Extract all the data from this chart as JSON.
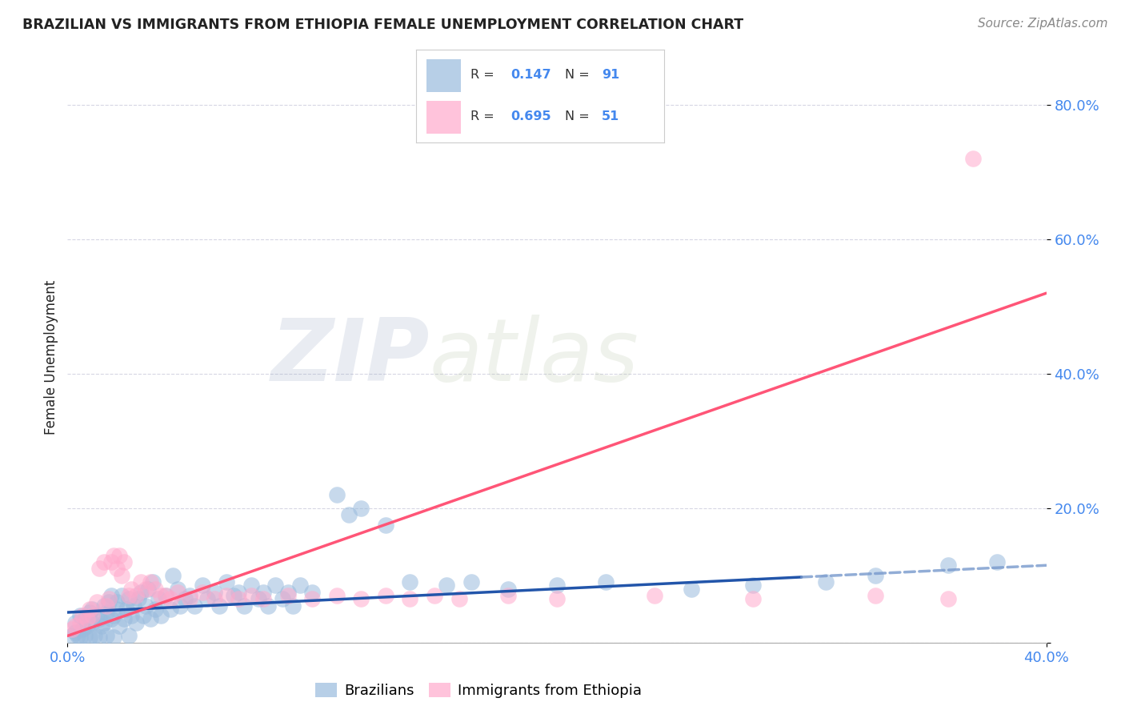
{
  "title": "BRAZILIAN VS IMMIGRANTS FROM ETHIOPIA FEMALE UNEMPLOYMENT CORRELATION CHART",
  "source": "Source: ZipAtlas.com",
  "ylabel": "Female Unemployment",
  "xlim": [
    0.0,
    0.4
  ],
  "ylim": [
    0.0,
    0.85
  ],
  "ytick_vals": [
    0.0,
    0.2,
    0.4,
    0.6,
    0.8
  ],
  "ytick_labels": [
    "",
    "20.0%",
    "40.0%",
    "60.0%",
    "80.0%"
  ],
  "xtick_vals": [
    0.0,
    0.4
  ],
  "xtick_labels": [
    "0.0%",
    "40.0%"
  ],
  "watermark_zip": "ZIP",
  "watermark_atlas": "atlas",
  "legend_r1": "R = ",
  "legend_v1": "0.147",
  "legend_n1": "N = ",
  "legend_nv1": "91",
  "legend_r2": "R = ",
  "legend_v2": "0.695",
  "legend_n2": "N = ",
  "legend_nv2": "51",
  "blue_color": "#99BBDD",
  "pink_color": "#FFAACC",
  "blue_line_color": "#2255AA",
  "pink_line_color": "#FF5577",
  "blue_line_dashed_color": "#7799CC",
  "axis_tick_color": "#4488EE",
  "text_color": "#222222",
  "source_color": "#888888",
  "background_color": "#FFFFFF",
  "grid_color": "#CCCCDD",
  "blue_scatter_x": [
    0.003,
    0.005,
    0.006,
    0.007,
    0.008,
    0.009,
    0.01,
    0.01,
    0.012,
    0.013,
    0.014,
    0.015,
    0.015,
    0.016,
    0.017,
    0.018,
    0.018,
    0.019,
    0.02,
    0.02,
    0.021,
    0.022,
    0.023,
    0.024,
    0.025,
    0.026,
    0.027,
    0.028,
    0.029,
    0.03,
    0.031,
    0.032,
    0.033,
    0.034,
    0.035,
    0.036,
    0.037,
    0.038,
    0.04,
    0.042,
    0.043,
    0.045,
    0.046,
    0.048,
    0.05,
    0.052,
    0.055,
    0.057,
    0.06,
    0.062,
    0.065,
    0.068,
    0.07,
    0.072,
    0.075,
    0.078,
    0.08,
    0.082,
    0.085,
    0.088,
    0.09,
    0.092,
    0.095,
    0.1,
    0.11,
    0.115,
    0.12,
    0.13,
    0.14,
    0.155,
    0.165,
    0.18,
    0.2,
    0.22,
    0.255,
    0.28,
    0.31,
    0.33,
    0.36,
    0.38,
    0.002,
    0.003,
    0.004,
    0.005,
    0.007,
    0.009,
    0.011,
    0.013,
    0.016,
    0.019,
    0.025
  ],
  "blue_scatter_y": [
    0.03,
    0.04,
    0.02,
    0.035,
    0.025,
    0.045,
    0.03,
    0.05,
    0.04,
    0.035,
    0.025,
    0.055,
    0.03,
    0.045,
    0.06,
    0.035,
    0.07,
    0.04,
    0.05,
    0.06,
    0.025,
    0.07,
    0.035,
    0.05,
    0.065,
    0.04,
    0.055,
    0.03,
    0.065,
    0.075,
    0.04,
    0.055,
    0.08,
    0.035,
    0.09,
    0.05,
    0.065,
    0.04,
    0.07,
    0.05,
    0.1,
    0.08,
    0.055,
    0.065,
    0.07,
    0.055,
    0.085,
    0.065,
    0.075,
    0.055,
    0.09,
    0.07,
    0.075,
    0.055,
    0.085,
    0.065,
    0.075,
    0.055,
    0.085,
    0.065,
    0.075,
    0.055,
    0.085,
    0.075,
    0.22,
    0.19,
    0.2,
    0.175,
    0.09,
    0.085,
    0.09,
    0.08,
    0.085,
    0.09,
    0.08,
    0.085,
    0.09,
    0.1,
    0.115,
    0.12,
    0.01,
    0.015,
    0.01,
    0.008,
    0.01,
    0.008,
    0.01,
    0.008,
    0.01,
    0.008,
    0.01
  ],
  "pink_scatter_x": [
    0.003,
    0.005,
    0.006,
    0.008,
    0.009,
    0.01,
    0.012,
    0.013,
    0.015,
    0.016,
    0.017,
    0.018,
    0.019,
    0.02,
    0.021,
    0.022,
    0.023,
    0.025,
    0.026,
    0.028,
    0.03,
    0.032,
    0.034,
    0.036,
    0.038,
    0.04,
    0.042,
    0.045,
    0.05,
    0.055,
    0.06,
    0.065,
    0.07,
    0.075,
    0.08,
    0.09,
    0.1,
    0.11,
    0.12,
    0.13,
    0.14,
    0.15,
    0.16,
    0.18,
    0.2,
    0.24,
    0.28,
    0.33,
    0.36,
    0.002,
    0.37
  ],
  "pink_scatter_y": [
    0.025,
    0.03,
    0.04,
    0.035,
    0.05,
    0.04,
    0.06,
    0.11,
    0.12,
    0.055,
    0.065,
    0.12,
    0.13,
    0.11,
    0.13,
    0.1,
    0.12,
    0.07,
    0.08,
    0.07,
    0.09,
    0.08,
    0.09,
    0.08,
    0.07,
    0.07,
    0.065,
    0.075,
    0.065,
    0.075,
    0.065,
    0.07,
    0.065,
    0.07,
    0.065,
    0.07,
    0.065,
    0.07,
    0.065,
    0.07,
    0.065,
    0.07,
    0.065,
    0.07,
    0.065,
    0.07,
    0.065,
    0.07,
    0.065,
    0.02,
    0.72
  ],
  "blue_trend_x0": 0.0,
  "blue_trend_x1": 0.4,
  "blue_trend_y0": 0.045,
  "blue_trend_y1": 0.115,
  "blue_trend_solid_x1": 0.3,
  "blue_trend_solid_y1": 0.105,
  "pink_trend_x0": 0.0,
  "pink_trend_x1": 0.4,
  "pink_trend_y0": 0.01,
  "pink_trend_y1": 0.52
}
